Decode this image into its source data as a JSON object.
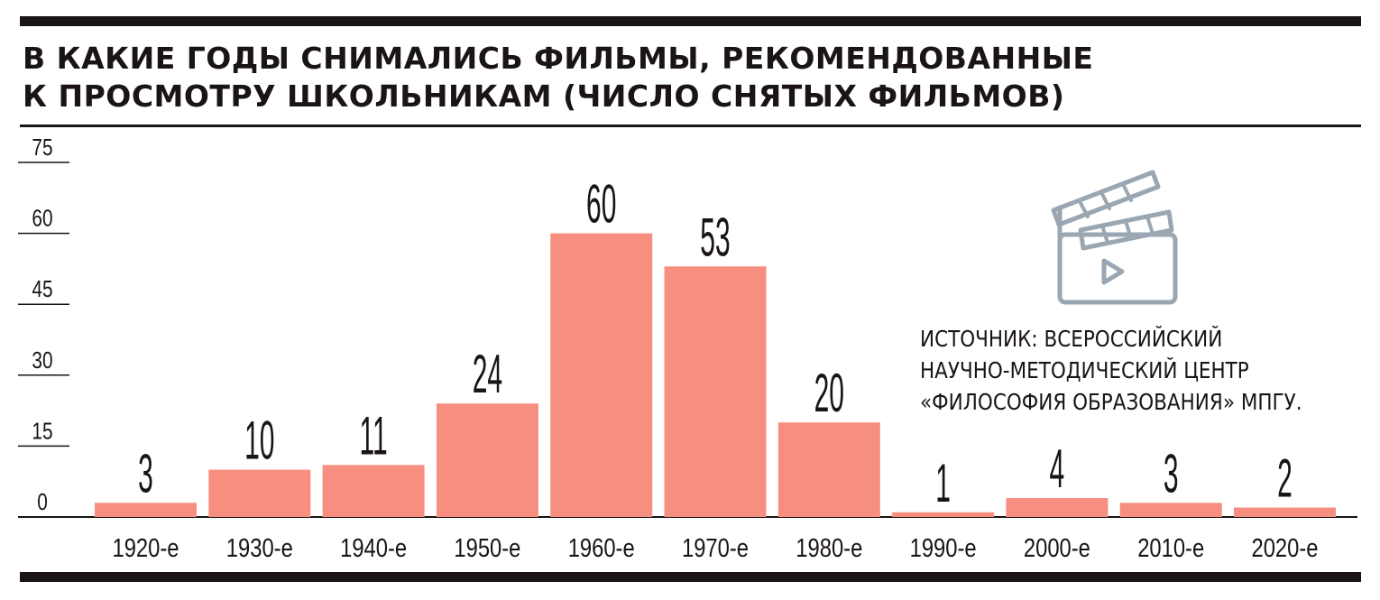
{
  "title_lines": [
    "В КАКИЕ ГОДЫ СНИМАЛИСЬ ФИЛЬМЫ, РЕКОМЕНДОВАННЫЕ",
    "К ПРОСМОТРУ ШКОЛЬНИКАМ (ЧИСЛО СНЯТЫХ ФИЛЬМОВ)"
  ],
  "source_lines": [
    "ИСТОЧНИК: ВСЕРОССИЙСКИЙ",
    "НАУЧНО-МЕТОДИЧЕСКИЙ ЦЕНТР",
    "«ФИЛОСОФИЯ ОБРАЗОВАНИЯ» МПГУ."
  ],
  "icon": "film-clapperboard-icon",
  "colors": {
    "bar": "#f78f80",
    "text": "#1a1414",
    "icon": "#9aa6b2"
  },
  "chart_data": {
    "type": "bar",
    "title": "В КАКИЕ ГОДЫ СНИМАЛИСЬ ФИЛЬМЫ, РЕКОМЕНДОВАННЫЕ К ПРОСМОТРУ ШКОЛЬНИКАМ (ЧИСЛО СНЯТЫХ ФИЛЬМОВ)",
    "categories": [
      "1920-е",
      "1930-е",
      "1940-е",
      "1950-е",
      "1960-е",
      "1970-е",
      "1980-е",
      "1990-е",
      "2000-е",
      "2010-е",
      "2020-е"
    ],
    "values": [
      3,
      10,
      11,
      24,
      60,
      53,
      20,
      1,
      4,
      3,
      2
    ],
    "value_labels": [
      "3",
      "10",
      "11",
      "24",
      "60",
      "53",
      "20",
      "1",
      "4",
      "3",
      "2"
    ],
    "yticks": [
      0,
      15,
      30,
      45,
      60,
      75
    ],
    "ytick_labels": [
      "0",
      "15",
      "30",
      "45",
      "60",
      "75"
    ],
    "ylim": [
      0,
      75
    ],
    "xlabel": "",
    "ylabel": "",
    "grid": false,
    "legend": "none"
  }
}
